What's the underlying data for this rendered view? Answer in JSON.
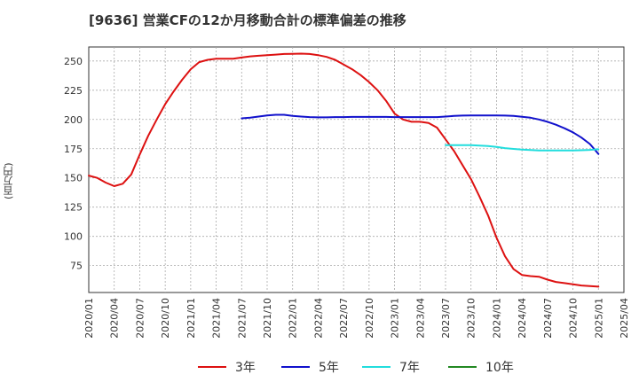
{
  "chart_data": {
    "type": "line",
    "title": "[9636]  営業CFの12か月移動合計の標準偏差の推移",
    "ylabel": "(百万円)",
    "xlabel": "",
    "ylim": [
      52,
      262
    ],
    "yticks": [
      75,
      100,
      125,
      150,
      175,
      200,
      225,
      250
    ],
    "xticks": [
      "2020/01",
      "2020/04",
      "2020/07",
      "2020/10",
      "2021/01",
      "2021/04",
      "2021/07",
      "2021/10",
      "2022/01",
      "2022/04",
      "2022/07",
      "2022/10",
      "2023/01",
      "2023/04",
      "2023/07",
      "2023/10",
      "2024/01",
      "2024/04",
      "2024/07",
      "2024/10",
      "2025/01",
      "2025/04"
    ],
    "grid": true,
    "legend_position": "bottom",
    "series": [
      {
        "name": "3年",
        "color": "#dd1111",
        "x": [
          "2020/01",
          "2020/02",
          "2020/03",
          "2020/04",
          "2020/05",
          "2020/06",
          "2020/07",
          "2020/08",
          "2020/09",
          "2020/10",
          "2020/11",
          "2020/12",
          "2021/01",
          "2021/02",
          "2021/03",
          "2021/04",
          "2021/05",
          "2021/06",
          "2021/07",
          "2021/08",
          "2021/09",
          "2021/10",
          "2021/11",
          "2021/12",
          "2022/01",
          "2022/02",
          "2022/03",
          "2022/04",
          "2022/05",
          "2022/06",
          "2022/07",
          "2022/08",
          "2022/09",
          "2022/10",
          "2022/11",
          "2022/12",
          "2023/01",
          "2023/02",
          "2023/03",
          "2023/04",
          "2023/05",
          "2023/06",
          "2023/07",
          "2023/08",
          "2023/09",
          "2023/10",
          "2023/11",
          "2023/12",
          "2024/01",
          "2024/02",
          "2024/03",
          "2024/04",
          "2024/05",
          "2024/06",
          "2024/07",
          "2024/08",
          "2024/09",
          "2024/10",
          "2024/11",
          "2024/12",
          "2025/01"
        ],
        "values": [
          152,
          150,
          146,
          143,
          145,
          153,
          170,
          186,
          200,
          213,
          224,
          234,
          243,
          249,
          251,
          252,
          252,
          252,
          253,
          254,
          254.5,
          255,
          255.5,
          256,
          256.2,
          256.3,
          256,
          255,
          253.5,
          251,
          247,
          243,
          238,
          232,
          225,
          216,
          205,
          200,
          198,
          198,
          197,
          193,
          183,
          173,
          161,
          149,
          134,
          118,
          99,
          83,
          72,
          67,
          66,
          65.5,
          63,
          61,
          60,
          59,
          58,
          57.5,
          57
        ]
      },
      {
        "name": "5年",
        "color": "#1111cc",
        "x": [
          "2021/07",
          "2021/08",
          "2021/09",
          "2021/10",
          "2021/11",
          "2021/12",
          "2022/01",
          "2022/02",
          "2022/03",
          "2022/04",
          "2022/05",
          "2022/06",
          "2022/07",
          "2022/08",
          "2022/09",
          "2022/10",
          "2022/11",
          "2022/12",
          "2023/01",
          "2023/02",
          "2023/03",
          "2023/04",
          "2023/05",
          "2023/06",
          "2023/07",
          "2023/08",
          "2023/09",
          "2023/10",
          "2023/11",
          "2023/12",
          "2024/01",
          "2024/02",
          "2024/03",
          "2024/04",
          "2024/05",
          "2024/06",
          "2024/07",
          "2024/08",
          "2024/09",
          "2024/10",
          "2024/11",
          "2024/12",
          "2025/01"
        ],
        "values": [
          201,
          201.5,
          202.5,
          203.5,
          204,
          204,
          203,
          202.5,
          202,
          201.8,
          201.8,
          202,
          202,
          202.2,
          202.2,
          202.2,
          202.2,
          202.2,
          202,
          202,
          202,
          202,
          202,
          202,
          202.5,
          203,
          203.3,
          203.5,
          203.5,
          203.5,
          203.5,
          203.3,
          203,
          202.3,
          201.5,
          200,
          198,
          195.5,
          192.5,
          189,
          184.5,
          179,
          170.5
        ]
      },
      {
        "name": "7年",
        "color": "#22dddd",
        "x": [
          "2023/07",
          "2023/08",
          "2023/09",
          "2023/10",
          "2023/11",
          "2023/12",
          "2024/01",
          "2024/02",
          "2024/03",
          "2024/04",
          "2024/05",
          "2024/06",
          "2024/07",
          "2024/08",
          "2024/09",
          "2024/10",
          "2024/11",
          "2024/12",
          "2025/01"
        ],
        "values": [
          178,
          178,
          178,
          178,
          177.7,
          177.3,
          176.5,
          175.5,
          174.8,
          174.3,
          173.8,
          173.5,
          173.5,
          173.5,
          173.5,
          173.5,
          173.7,
          174,
          174.5
        ]
      },
      {
        "name": "10年",
        "color": "#228822",
        "x": [],
        "values": []
      }
    ]
  }
}
